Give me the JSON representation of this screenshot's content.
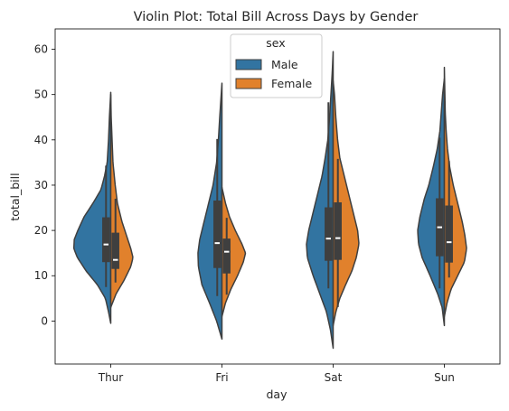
{
  "chart_data": {
    "type": "violin",
    "title": "Violin Plot: Total Bill Across Days by Gender",
    "xlabel": "day",
    "ylabel": "total_bill",
    "categories": [
      "Thur",
      "Fri",
      "Sat",
      "Sun"
    ],
    "ylim": [
      -9.5,
      64.5
    ],
    "yticks": [
      0,
      10,
      20,
      30,
      40,
      50,
      60
    ],
    "grid": false,
    "split": true,
    "legend": {
      "title": "sex",
      "position": "upper center"
    },
    "colors": {
      "Male": "#3274a1",
      "Female": "#e1812c",
      "outline": "#3f3f3f",
      "inner_box": "#3f3f3f",
      "median": "#ffffff"
    },
    "series": [
      {
        "name": "Male",
        "side": "left",
        "violins": [
          {
            "category": "Thur",
            "range": [
              -0.5,
              50.5
            ],
            "q1": 13.0,
            "median": 16.9,
            "q3": 22.9,
            "whiskers": [
              7.5,
              34.3
            ],
            "profile": [
              [
                -0.5,
                0.0
              ],
              [
                2,
                0.05
              ],
              [
                5,
                0.12
              ],
              [
                8,
                0.3
              ],
              [
                11,
                0.55
              ],
              [
                14,
                0.75
              ],
              [
                16,
                0.83
              ],
              [
                18,
                0.82
              ],
              [
                20,
                0.74
              ],
              [
                23,
                0.6
              ],
              [
                26,
                0.4
              ],
              [
                29,
                0.22
              ],
              [
                32,
                0.14
              ],
              [
                35,
                0.08
              ],
              [
                40,
                0.05
              ],
              [
                45,
                0.03
              ],
              [
                50.5,
                0.0
              ]
            ]
          },
          {
            "category": "Fri",
            "range": [
              -4,
              52.5
            ],
            "q1": 11.7,
            "median": 17.2,
            "q3": 26.6,
            "whiskers": [
              5.5,
              40.2
            ],
            "profile": [
              [
                -4,
                0.0
              ],
              [
                0,
                0.12
              ],
              [
                4,
                0.28
              ],
              [
                8,
                0.45
              ],
              [
                12,
                0.53
              ],
              [
                15,
                0.54
              ],
              [
                18,
                0.5
              ],
              [
                22,
                0.4
              ],
              [
                26,
                0.3
              ],
              [
                30,
                0.2
              ],
              [
                35,
                0.12
              ],
              [
                40,
                0.08
              ],
              [
                45,
                0.05
              ],
              [
                52.5,
                0.0
              ]
            ]
          },
          {
            "category": "Sat",
            "range": [
              -6,
              59.5
            ],
            "q1": 13.3,
            "median": 18.2,
            "q3": 25.1,
            "whiskers": [
              7.2,
              48.3
            ],
            "profile": [
              [
                -6,
                0.0
              ],
              [
                -2,
                0.06
              ],
              [
                2,
                0.15
              ],
              [
                6,
                0.3
              ],
              [
                10,
                0.45
              ],
              [
                14,
                0.58
              ],
              [
                17,
                0.6
              ],
              [
                20,
                0.55
              ],
              [
                24,
                0.45
              ],
              [
                28,
                0.35
              ],
              [
                32,
                0.25
              ],
              [
                36,
                0.18
              ],
              [
                40,
                0.12
              ],
              [
                45,
                0.08
              ],
              [
                50,
                0.05
              ],
              [
                55,
                0.02
              ],
              [
                59.5,
                0.0
              ]
            ]
          },
          {
            "category": "Sun",
            "range": [
              -1,
              53.5
            ],
            "q1": 14.3,
            "median": 20.7,
            "q3": 27.1,
            "whiskers": [
              7.2,
              40.5
            ],
            "profile": [
              [
                -1,
                0.0
              ],
              [
                3,
                0.05
              ],
              [
                6,
                0.15
              ],
              [
                10,
                0.32
              ],
              [
                14,
                0.5
              ],
              [
                17,
                0.58
              ],
              [
                20,
                0.6
              ],
              [
                23,
                0.55
              ],
              [
                27,
                0.45
              ],
              [
                30,
                0.35
              ],
              [
                34,
                0.25
              ],
              [
                38,
                0.16
              ],
              [
                42,
                0.1
              ],
              [
                46,
                0.07
              ],
              [
                50,
                0.04
              ],
              [
                53.5,
                0.0
              ]
            ]
          }
        ]
      },
      {
        "name": "Female",
        "side": "right",
        "violins": [
          {
            "category": "Thur",
            "range": [
              3,
              50
            ],
            "q1": 11.5,
            "median": 13.5,
            "q3": 19.5,
            "whiskers": [
              8.5,
              27.0
            ],
            "profile": [
              [
                3,
                0.0
              ],
              [
                6,
                0.12
              ],
              [
                9,
                0.3
              ],
              [
                12,
                0.45
              ],
              [
                14,
                0.5
              ],
              [
                16,
                0.45
              ],
              [
                19,
                0.35
              ],
              [
                22,
                0.25
              ],
              [
                26,
                0.15
              ],
              [
                30,
                0.1
              ],
              [
                35,
                0.05
              ],
              [
                40,
                0.03
              ],
              [
                45,
                0.01
              ],
              [
                50,
                0.0
              ]
            ]
          },
          {
            "category": "Fri",
            "range": [
              1,
              29.5
            ],
            "q1": 10.5,
            "median": 15.3,
            "q3": 18.2,
            "whiskers": [
              5.8,
              22.8
            ],
            "profile": [
              [
                1,
                0.0
              ],
              [
                4,
                0.08
              ],
              [
                7,
                0.2
              ],
              [
                10,
                0.35
              ],
              [
                13,
                0.48
              ],
              [
                15,
                0.53
              ],
              [
                17,
                0.45
              ],
              [
                20,
                0.3
              ],
              [
                23,
                0.17
              ],
              [
                26,
                0.08
              ],
              [
                29.5,
                0.0
              ]
            ]
          },
          {
            "category": "Sat",
            "range": [
              -1,
              53
            ],
            "q1": 13.5,
            "median": 18.3,
            "q3": 26.2,
            "whiskers": [
              3.1,
              35.8
            ],
            "profile": [
              [
                -1,
                0.0
              ],
              [
                2,
                0.06
              ],
              [
                5,
                0.15
              ],
              [
                8,
                0.28
              ],
              [
                11,
                0.42
              ],
              [
                14,
                0.52
              ],
              [
                17,
                0.58
              ],
              [
                20,
                0.55
              ],
              [
                24,
                0.45
              ],
              [
                28,
                0.35
              ],
              [
                32,
                0.25
              ],
              [
                36,
                0.15
              ],
              [
                40,
                0.1
              ],
              [
                45,
                0.06
              ],
              [
                50,
                0.03
              ],
              [
                53,
                0.0
              ]
            ]
          },
          {
            "category": "Sun",
            "range": [
              1,
              56
            ],
            "q1": 12.9,
            "median": 17.4,
            "q3": 25.5,
            "whiskers": [
              9.6,
              35.3
            ],
            "profile": [
              [
                1,
                0.0
              ],
              [
                4,
                0.06
              ],
              [
                7,
                0.15
              ],
              [
                10,
                0.3
              ],
              [
                13,
                0.45
              ],
              [
                16,
                0.5
              ],
              [
                19,
                0.46
              ],
              [
                22,
                0.4
              ],
              [
                26,
                0.3
              ],
              [
                30,
                0.2
              ],
              [
                34,
                0.12
              ],
              [
                38,
                0.07
              ],
              [
                42,
                0.04
              ],
              [
                46,
                0.02
              ],
              [
                56,
                0.0
              ]
            ]
          }
        ]
      }
    ]
  }
}
